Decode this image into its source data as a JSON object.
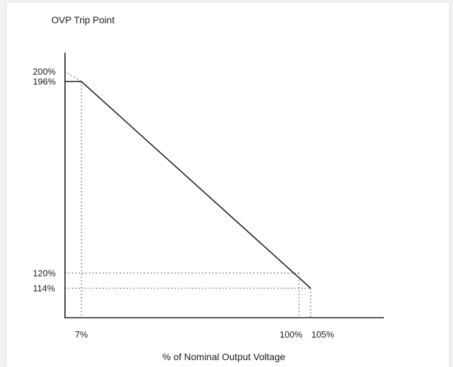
{
  "chart_data": {
    "type": "line",
    "title": "",
    "ylabel": "OVP Trip Point",
    "xlabel": "% of Nominal Output Voltage",
    "xlim": [
      0,
      112
    ],
    "ylim": [
      100,
      200
    ],
    "grid": false,
    "series": [
      {
        "x": [
          0,
          7,
          105
        ],
        "y": [
          196,
          196,
          114
        ]
      }
    ],
    "extrapolation": {
      "x": [
        0,
        7
      ],
      "y": [
        200,
        196
      ]
    },
    "reference_points": [
      {
        "x": 7,
        "y": 196
      },
      {
        "x": 100,
        "y": 120
      },
      {
        "x": 105,
        "y": 114
      }
    ],
    "x_ticks": [
      {
        "value": 7,
        "label": "7%"
      },
      {
        "value": 100,
        "label": "100%"
      },
      {
        "value": 105,
        "label": "105%"
      }
    ],
    "y_ticks": [
      {
        "value": 200,
        "label": "200%"
      },
      {
        "value": 196,
        "label": "196%"
      },
      {
        "value": 120,
        "label": "120%"
      },
      {
        "value": 114,
        "label": "114%"
      }
    ],
    "colors": {
      "line": "#1a1a1a",
      "guides": "#555555"
    }
  }
}
